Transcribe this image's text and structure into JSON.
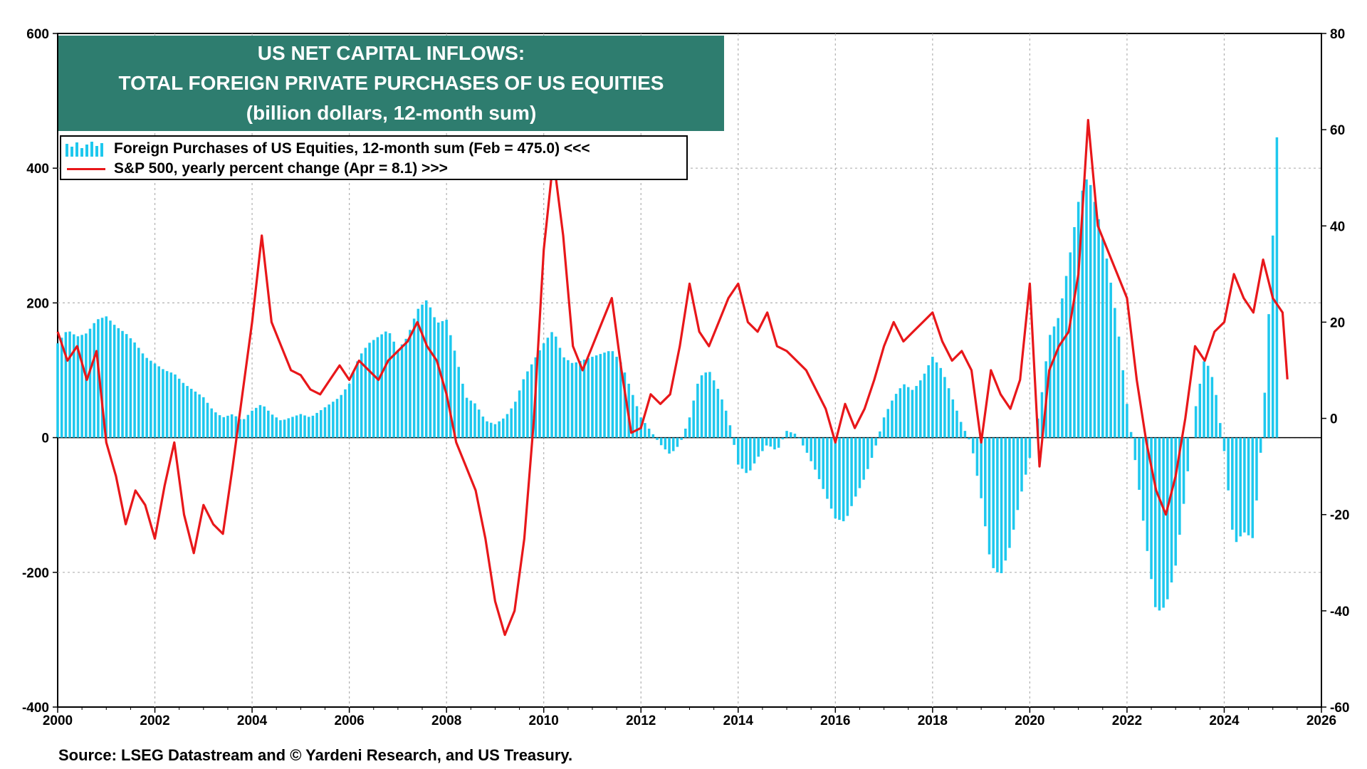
{
  "title": {
    "line1": "US NET CAPITAL INFLOWS:",
    "line2": "TOTAL  FOREIGN PRIVATE PURCHASES OF US EQUITIES",
    "line3": "(billion dollars, 12-month sum)"
  },
  "legend": {
    "bars": "Foreign Purchases of US Equities, 12-month sum (Feb = 475.0) <<<",
    "line": "S&P 500, yearly percent change (Apr = 8.1) >>>"
  },
  "source": "Source: LSEG Datastream and © Yardeni Research, and US Treasury.",
  "colors": {
    "bars": "#1ec8ee",
    "line": "#e8171a",
    "title_bg": "#2e7d6f"
  },
  "chart_data": {
    "type": "bar",
    "x_range": [
      2000,
      2026
    ],
    "x_ticks": [
      "2000",
      "2002",
      "2004",
      "2006",
      "2008",
      "2010",
      "2012",
      "2014",
      "2016",
      "2018",
      "2020",
      "2022",
      "2024",
      "2026"
    ],
    "y_left": {
      "range": [
        -400,
        600
      ],
      "ticks": [
        "600",
        "400",
        "200",
        "0",
        "-200",
        "-400"
      ]
    },
    "y_right": {
      "range": [
        -60,
        80
      ],
      "ticks": [
        "80",
        "60",
        "40",
        "20",
        "0",
        "-20",
        "-40",
        "-60"
      ]
    },
    "grid": true,
    "legend_position": "top-left",
    "series": [
      {
        "name": "Foreign Purchases of US Equities, 12-month sum (Feb = 475.0) <<<",
        "axis": "left",
        "type": "bar",
        "points": [
          [
            2000.0,
            140
          ],
          [
            2000.2,
            160
          ],
          [
            2000.4,
            150
          ],
          [
            2000.6,
            155
          ],
          [
            2000.8,
            175
          ],
          [
            2001.0,
            180
          ],
          [
            2001.2,
            165
          ],
          [
            2001.4,
            155
          ],
          [
            2001.6,
            140
          ],
          [
            2001.8,
            120
          ],
          [
            2002.0,
            110
          ],
          [
            2002.2,
            100
          ],
          [
            2002.4,
            95
          ],
          [
            2002.6,
            80
          ],
          [
            2002.8,
            70
          ],
          [
            2003.0,
            60
          ],
          [
            2003.2,
            40
          ],
          [
            2003.4,
            30
          ],
          [
            2003.6,
            35
          ],
          [
            2003.8,
            25
          ],
          [
            2004.0,
            40
          ],
          [
            2004.2,
            50
          ],
          [
            2004.4,
            35
          ],
          [
            2004.6,
            25
          ],
          [
            2004.8,
            30
          ],
          [
            2005.0,
            35
          ],
          [
            2005.2,
            30
          ],
          [
            2005.4,
            40
          ],
          [
            2005.6,
            50
          ],
          [
            2005.8,
            60
          ],
          [
            2006.0,
            80
          ],
          [
            2006.2,
            120
          ],
          [
            2006.4,
            140
          ],
          [
            2006.6,
            150
          ],
          [
            2006.8,
            160
          ],
          [
            2007.0,
            130
          ],
          [
            2007.2,
            150
          ],
          [
            2007.4,
            190
          ],
          [
            2007.6,
            205
          ],
          [
            2007.8,
            170
          ],
          [
            2008.0,
            175
          ],
          [
            2008.2,
            120
          ],
          [
            2008.4,
            60
          ],
          [
            2008.6,
            50
          ],
          [
            2008.8,
            25
          ],
          [
            2009.0,
            20
          ],
          [
            2009.2,
            30
          ],
          [
            2009.4,
            50
          ],
          [
            2009.6,
            90
          ],
          [
            2009.8,
            115
          ],
          [
            2010.0,
            140
          ],
          [
            2010.2,
            160
          ],
          [
            2010.4,
            120
          ],
          [
            2010.6,
            110
          ],
          [
            2010.8,
            115
          ],
          [
            2011.0,
            120
          ],
          [
            2011.2,
            125
          ],
          [
            2011.4,
            130
          ],
          [
            2011.6,
            110
          ],
          [
            2011.8,
            70
          ],
          [
            2012.0,
            30
          ],
          [
            2012.2,
            10
          ],
          [
            2012.4,
            -10
          ],
          [
            2012.6,
            -25
          ],
          [
            2012.8,
            -10
          ],
          [
            2013.0,
            30
          ],
          [
            2013.2,
            90
          ],
          [
            2013.4,
            100
          ],
          [
            2013.6,
            70
          ],
          [
            2013.8,
            30
          ],
          [
            2014.0,
            -40
          ],
          [
            2014.2,
            -55
          ],
          [
            2014.4,
            -30
          ],
          [
            2014.6,
            -10
          ],
          [
            2014.8,
            -20
          ],
          [
            2015.0,
            10
          ],
          [
            2015.2,
            5
          ],
          [
            2015.4,
            -20
          ],
          [
            2015.6,
            -50
          ],
          [
            2015.8,
            -85
          ],
          [
            2016.0,
            -120
          ],
          [
            2016.2,
            -125
          ],
          [
            2016.4,
            -90
          ],
          [
            2016.6,
            -60
          ],
          [
            2016.8,
            -20
          ],
          [
            2017.0,
            30
          ],
          [
            2017.2,
            60
          ],
          [
            2017.4,
            80
          ],
          [
            2017.6,
            70
          ],
          [
            2017.8,
            90
          ],
          [
            2018.0,
            120
          ],
          [
            2018.2,
            100
          ],
          [
            2018.4,
            60
          ],
          [
            2018.6,
            20
          ],
          [
            2018.8,
            -10
          ],
          [
            2019.0,
            -90
          ],
          [
            2019.2,
            -190
          ],
          [
            2019.4,
            -205
          ],
          [
            2019.6,
            -160
          ],
          [
            2019.8,
            -90
          ],
          [
            2020.0,
            -30
          ],
          [
            2020.2,
            40
          ],
          [
            2020.4,
            150
          ],
          [
            2020.6,
            180
          ],
          [
            2020.8,
            260
          ],
          [
            2021.0,
            350
          ],
          [
            2021.2,
            390
          ],
          [
            2021.4,
            330
          ],
          [
            2021.6,
            260
          ],
          [
            2021.8,
            170
          ],
          [
            2022.0,
            50
          ],
          [
            2022.2,
            -50
          ],
          [
            2022.4,
            -160
          ],
          [
            2022.6,
            -260
          ],
          [
            2022.8,
            -250
          ],
          [
            2023.0,
            -190
          ],
          [
            2023.2,
            -80
          ],
          [
            2023.4,
            40
          ],
          [
            2023.6,
            120
          ],
          [
            2023.8,
            80
          ],
          [
            2024.0,
            -20
          ],
          [
            2024.2,
            -160
          ],
          [
            2024.4,
            -140
          ],
          [
            2024.6,
            -150
          ],
          [
            2024.8,
            20
          ],
          [
            2025.0,
            300
          ],
          [
            2025.1,
            475
          ]
        ]
      },
      {
        "name": "S&P 500, yearly percent change (Apr = 8.1) >>>",
        "axis": "right",
        "type": "line",
        "points": [
          [
            2000.0,
            18
          ],
          [
            2000.2,
            12
          ],
          [
            2000.4,
            15
          ],
          [
            2000.6,
            8
          ],
          [
            2000.8,
            14
          ],
          [
            2001.0,
            -5
          ],
          [
            2001.2,
            -12
          ],
          [
            2001.4,
            -22
          ],
          [
            2001.6,
            -15
          ],
          [
            2001.8,
            -18
          ],
          [
            2002.0,
            -25
          ],
          [
            2002.2,
            -14
          ],
          [
            2002.4,
            -5
          ],
          [
            2002.6,
            -20
          ],
          [
            2002.8,
            -28
          ],
          [
            2003.0,
            -18
          ],
          [
            2003.2,
            -22
          ],
          [
            2003.4,
            -24
          ],
          [
            2003.6,
            -10
          ],
          [
            2003.8,
            5
          ],
          [
            2004.0,
            20
          ],
          [
            2004.2,
            38
          ],
          [
            2004.4,
            20
          ],
          [
            2004.6,
            15
          ],
          [
            2004.8,
            10
          ],
          [
            2005.0,
            9
          ],
          [
            2005.2,
            6
          ],
          [
            2005.4,
            5
          ],
          [
            2005.6,
            8
          ],
          [
            2005.8,
            11
          ],
          [
            2006.0,
            8
          ],
          [
            2006.2,
            12
          ],
          [
            2006.4,
            10
          ],
          [
            2006.6,
            8
          ],
          [
            2006.8,
            12
          ],
          [
            2007.0,
            14
          ],
          [
            2007.2,
            16
          ],
          [
            2007.4,
            20
          ],
          [
            2007.6,
            15
          ],
          [
            2007.8,
            12
          ],
          [
            2008.0,
            5
          ],
          [
            2008.2,
            -5
          ],
          [
            2008.4,
            -10
          ],
          [
            2008.6,
            -15
          ],
          [
            2008.8,
            -25
          ],
          [
            2009.0,
            -38
          ],
          [
            2009.2,
            -45
          ],
          [
            2009.4,
            -40
          ],
          [
            2009.6,
            -25
          ],
          [
            2009.8,
            0
          ],
          [
            2010.0,
            35
          ],
          [
            2010.2,
            54
          ],
          [
            2010.4,
            38
          ],
          [
            2010.6,
            15
          ],
          [
            2010.8,
            10
          ],
          [
            2011.0,
            15
          ],
          [
            2011.2,
            20
          ],
          [
            2011.4,
            25
          ],
          [
            2011.6,
            10
          ],
          [
            2011.8,
            -3
          ],
          [
            2012.0,
            -2
          ],
          [
            2012.2,
            5
          ],
          [
            2012.4,
            3
          ],
          [
            2012.6,
            5
          ],
          [
            2012.8,
            15
          ],
          [
            2013.0,
            28
          ],
          [
            2013.2,
            18
          ],
          [
            2013.4,
            15
          ],
          [
            2013.6,
            20
          ],
          [
            2013.8,
            25
          ],
          [
            2014.0,
            28
          ],
          [
            2014.2,
            20
          ],
          [
            2014.4,
            18
          ],
          [
            2014.6,
            22
          ],
          [
            2014.8,
            15
          ],
          [
            2015.0,
            14
          ],
          [
            2015.2,
            12
          ],
          [
            2015.4,
            10
          ],
          [
            2015.6,
            6
          ],
          [
            2015.8,
            2
          ],
          [
            2016.0,
            -5
          ],
          [
            2016.2,
            3
          ],
          [
            2016.4,
            -2
          ],
          [
            2016.6,
            2
          ],
          [
            2016.8,
            8
          ],
          [
            2017.0,
            15
          ],
          [
            2017.2,
            20
          ],
          [
            2017.4,
            16
          ],
          [
            2017.6,
            18
          ],
          [
            2017.8,
            20
          ],
          [
            2018.0,
            22
          ],
          [
            2018.2,
            16
          ],
          [
            2018.4,
            12
          ],
          [
            2018.6,
            14
          ],
          [
            2018.8,
            10
          ],
          [
            2019.0,
            -5
          ],
          [
            2019.2,
            10
          ],
          [
            2019.4,
            5
          ],
          [
            2019.6,
            2
          ],
          [
            2019.8,
            8
          ],
          [
            2020.0,
            28
          ],
          [
            2020.2,
            -10
          ],
          [
            2020.4,
            10
          ],
          [
            2020.6,
            15
          ],
          [
            2020.8,
            18
          ],
          [
            2021.0,
            30
          ],
          [
            2021.2,
            62
          ],
          [
            2021.4,
            40
          ],
          [
            2021.6,
            35
          ],
          [
            2021.8,
            30
          ],
          [
            2022.0,
            25
          ],
          [
            2022.2,
            8
          ],
          [
            2022.4,
            -5
          ],
          [
            2022.6,
            -15
          ],
          [
            2022.8,
            -20
          ],
          [
            2023.0,
            -12
          ],
          [
            2023.2,
            0
          ],
          [
            2023.4,
            15
          ],
          [
            2023.6,
            12
          ],
          [
            2023.8,
            18
          ],
          [
            2024.0,
            20
          ],
          [
            2024.2,
            30
          ],
          [
            2024.4,
            25
          ],
          [
            2024.6,
            22
          ],
          [
            2024.8,
            33
          ],
          [
            2025.0,
            25
          ],
          [
            2025.2,
            22
          ],
          [
            2025.3,
            8.1
          ]
        ]
      }
    ]
  }
}
